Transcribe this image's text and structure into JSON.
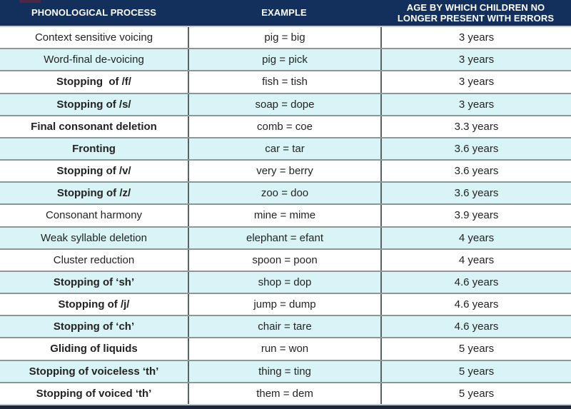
{
  "chart_data": {
    "type": "table",
    "title": "",
    "columns": [
      "PHONOLOGICAL PROCESS",
      "EXAMPLE",
      "AGE BY WHICH CHILDREN NO LONGER PRESENT WITH ERRORS"
    ],
    "rows": [
      {
        "process": "Context sensitive voicing",
        "example": "pig = big",
        "age": "3 years",
        "bold": false
      },
      {
        "process": "Word-final de-voicing",
        "example": "pig = pick",
        "age": "3 years",
        "bold": false
      },
      {
        "process": "Stopping  of /f/",
        "example": "fish = tish",
        "age": "3 years",
        "bold": true
      },
      {
        "process": "Stopping of /s/",
        "example": "soap = dope",
        "age": "3 years",
        "bold": true
      },
      {
        "process": "Final consonant deletion",
        "example": "comb = coe",
        "age": "3.3 years",
        "bold": true
      },
      {
        "process": "Fronting",
        "example": "car = tar",
        "age": "3.6 years",
        "bold": true
      },
      {
        "process": "Stopping of /v/",
        "example": "very = berry",
        "age": "3.6 years",
        "bold": true
      },
      {
        "process": "Stopping of /z/",
        "example": "zoo = doo",
        "age": "3.6 years",
        "bold": true
      },
      {
        "process": "Consonant harmony",
        "example": "mine = mime",
        "age": "3.9 years",
        "bold": false
      },
      {
        "process": "Weak syllable deletion",
        "example": "elephant = efant",
        "age": "4 years",
        "bold": false
      },
      {
        "process": "Cluster reduction",
        "example": "spoon = poon",
        "age": "4 years",
        "bold": false
      },
      {
        "process": "Stopping of ‘sh’",
        "example": "shop = dop",
        "age": "4.6 years",
        "bold": true
      },
      {
        "process": "Stopping of /j/",
        "example": "jump = dump",
        "age": "4.6 years",
        "bold": true
      },
      {
        "process": "Stopping of ‘ch’",
        "example": "chair = tare",
        "age": "4.6 years",
        "bold": true
      },
      {
        "process": "Gliding of liquids",
        "example": "run = won",
        "age": "5 years",
        "bold": true
      },
      {
        "process": "Stopping of voiceless ‘th’",
        "example": "thing = ting",
        "age": "5 years",
        "bold": true
      },
      {
        "process": "Stopping of voiced ‘th’",
        "example": "them = dem",
        "age": "5 years",
        "bold": true
      }
    ]
  },
  "colors": {
    "header_bg": "#13305d",
    "header_text": "#ffffff",
    "row_bg": "#ffffff",
    "row_alt_bg": "#d9f4f7",
    "grid_line": "#8c9797",
    "column_line": "#586262",
    "bottom_bar": "#1e2738",
    "text": "#232323"
  }
}
